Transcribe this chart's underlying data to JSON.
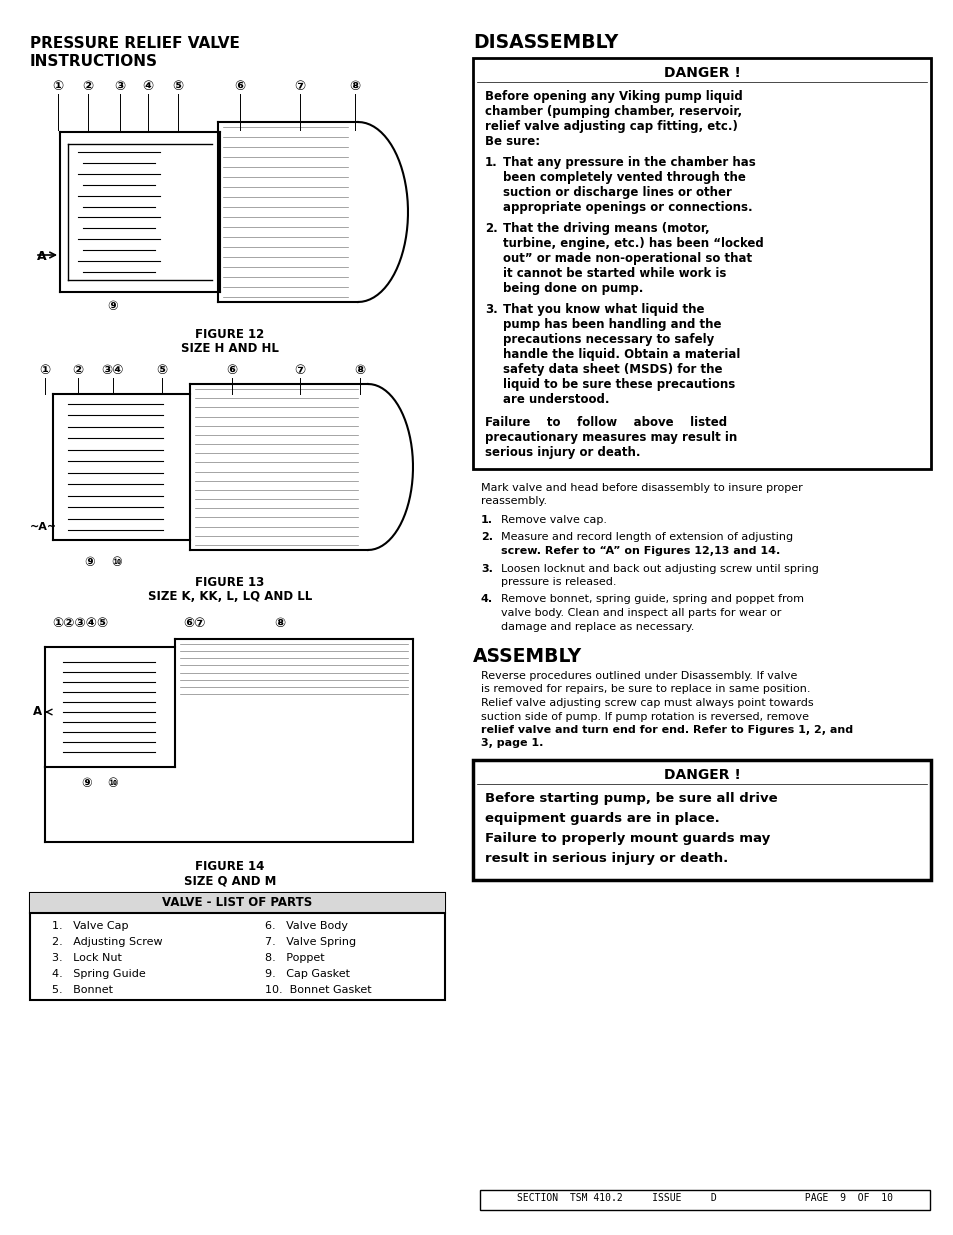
{
  "page_bg": "#ffffff",
  "left_col": {
    "title_line1": "PRESSURE RELIEF VALVE",
    "title_line2": "INSTRUCTIONS",
    "fig12_caption_line1": "FIGURE 12",
    "fig12_caption_line2": "SIZE H AND HL",
    "fig13_caption_line1": "FIGURE 13",
    "fig13_caption_line2": "SIZE K, KK, L, LQ AND LL",
    "fig14_caption_line1": "FIGURE 14",
    "fig14_caption_line2": "SIZE Q AND M",
    "table_header": "VALVE - LIST OF PARTS",
    "parts_left": [
      "1.   Valve Cap",
      "2.   Adjusting Screw",
      "3.   Lock Nut",
      "4.   Spring Guide",
      "5.   Bonnet"
    ],
    "parts_right": [
      "6.   Valve Body",
      "7.   Valve Spring",
      "8.   Poppet",
      "9.   Cap Gasket",
      "10.  Bonnet Gasket"
    ]
  },
  "right_col": {
    "disassembly_title": "DISASSEMBLY",
    "danger_box1_title": "DANGER !",
    "danger_box1_intro_lines": [
      "Before opening any Viking pump liquid",
      "chamber (pumping chamber, reservoir,",
      "relief valve adjusting cap fitting, etc.)",
      "Be sure:"
    ],
    "danger_box1_items": [
      [
        "That any pressure in the chamber has",
        "been completely vented through the",
        "suction or discharge lines or other",
        "appropriate openings or connections."
      ],
      [
        "That the driving means (motor,",
        "turbine, engine, etc.) has been “locked",
        "out” or made non-operational so that",
        "it cannot be started while work is",
        "being done on pump."
      ],
      [
        "That you know what liquid the",
        "pump has been handling and the",
        "precautions necessary to safely",
        "handle the liquid. Obtain a material",
        "safety data sheet (MSDS) for the",
        "liquid to be sure these precautions",
        "are understood."
      ]
    ],
    "danger_box1_footer_lines": [
      "Failure    to    follow    above    listed",
      "precautionary measures may result in",
      "serious injury or death."
    ],
    "disassembly_intro_lines": [
      "Mark valve and head before disassembly to insure proper",
      "reassembly."
    ],
    "disassembly_steps": [
      {
        "label": "1.",
        "lines": [
          "Remove valve cap."
        ]
      },
      {
        "label": "2.",
        "lines": [
          "Measure and record length of extension of adjusting",
          "screw. Refer to “A” on Figures 12,13 and 14."
        ]
      },
      {
        "label": "3.",
        "lines": [
          "Loosen locknut and back out adjusting screw until spring",
          "pressure is released."
        ]
      },
      {
        "label": "4.",
        "lines": [
          "Remove bonnet, spring guide, spring and poppet from",
          "valve body. Clean and inspect all parts for wear or",
          "damage and replace as necessary."
        ]
      }
    ],
    "assembly_title": "ASSEMBLY",
    "assembly_lines": [
      "Reverse procedures outlined under Disassembly. If valve",
      "is removed for repairs, be sure to replace in same position.",
      "Relief valve adjusting screw cap must always point towards",
      "suction side of pump. If pump rotation is reversed, remove",
      "relief valve and turn end for end. Refer to Figures 1, 2, and",
      "3, page 1."
    ],
    "assembly_bold_parts": [
      "Refer to Figures 1, 2, and",
      "3, page 1."
    ],
    "danger_box2_title": "DANGER !",
    "danger_box2_lines": [
      {
        "text": "Before starting pump, be sure all drive",
        "bold": true
      },
      {
        "text": "equipment guards are in place.",
        "bold": true
      },
      {
        "text": "",
        "bold": false
      },
      {
        "text": "Failure to properly mount guards may",
        "bold": true
      },
      {
        "text": "result in serious injury or death.",
        "bold": true
      }
    ],
    "footer_text": "SECTION  TSM 410.2     ISSUE     D               PAGE  9  OF  10"
  }
}
